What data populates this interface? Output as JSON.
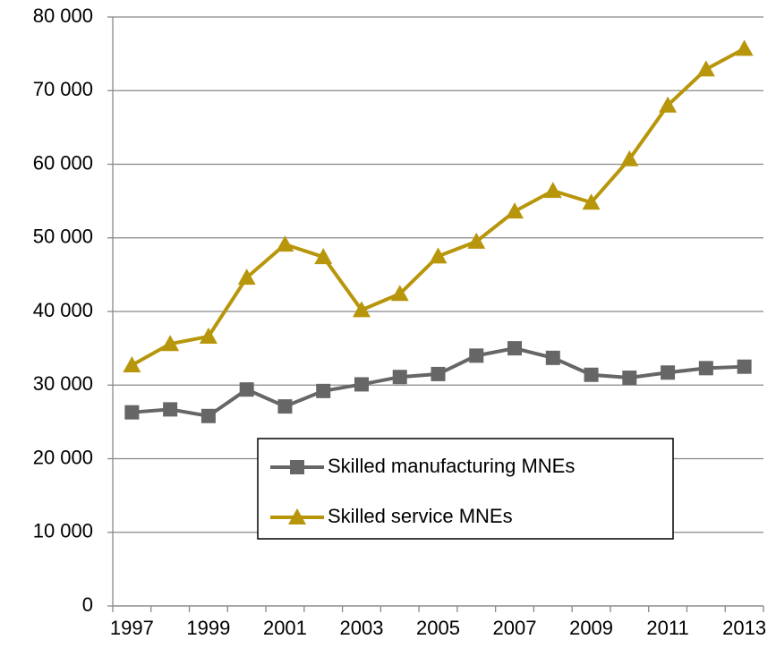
{
  "chart_data": {
    "type": "line",
    "categories": [
      "1997",
      null,
      "1999",
      null,
      "2001",
      null,
      "2003",
      null,
      "2005",
      null,
      "2007",
      null,
      "2009",
      null,
      "2011",
      null,
      "2013"
    ],
    "series": [
      {
        "name": "Skilled manufacturing MNEs",
        "color": "#666666",
        "marker": "square",
        "values": [
          26300,
          26700,
          25800,
          29400,
          27100,
          29200,
          30100,
          31100,
          31500,
          34000,
          35000,
          33700,
          31400,
          31000,
          31700,
          32300,
          32500
        ]
      },
      {
        "name": "Skilled service MNEs",
        "color": "#b8960b",
        "marker": "triangle",
        "values": [
          32700,
          35600,
          36600,
          44600,
          49100,
          47400,
          40200,
          42400,
          47500,
          49500,
          53600,
          56400,
          54800,
          60700,
          68000,
          72900,
          75700
        ]
      }
    ],
    "ylim": [
      0,
      80000
    ],
    "yticks": [
      0,
      {
        "value": 10000,
        "label": "10 000"
      },
      {
        "value": 20000,
        "label": "20 000"
      },
      {
        "value": 30000,
        "label": "30 000"
      },
      {
        "value": 40000,
        "label": "40 000"
      },
      {
        "value": 50000,
        "label": "50 000"
      },
      {
        "value": 60000,
        "label": "60 000"
      },
      {
        "value": 70000,
        "label": "70 000"
      },
      {
        "value": 80000,
        "label": "80 000"
      }
    ],
    "grid": true
  }
}
